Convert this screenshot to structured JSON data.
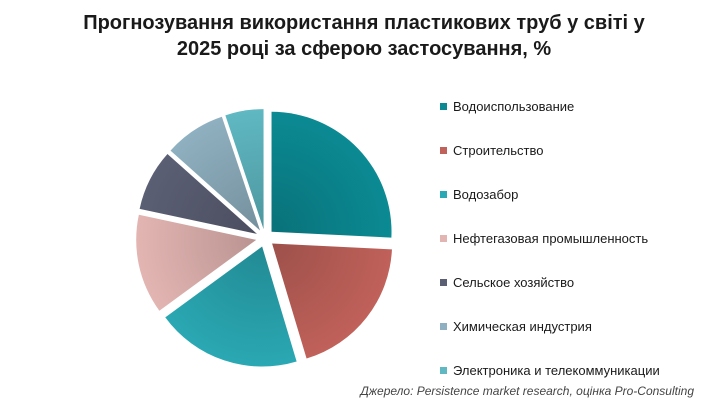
{
  "chart_data": {
    "type": "pie",
    "title_line1": "Прогнозування використання пластикових труб у світі у",
    "title_line2": "2025 році за сферою застосування, %",
    "source": "Джерело: Persistence market research, оцінка Pro-Consulting",
    "legend_position": "right",
    "exploded": true,
    "slices": [
      {
        "label": "Водоиспользование",
        "value": 25,
        "color": "#0b8a93"
      },
      {
        "label": "Строительство",
        "value": 19,
        "color": "#c0615a"
      },
      {
        "label": "Водозабор",
        "value": 19,
        "color": "#2aa8b3"
      },
      {
        "label": "Нефтегазовая промышленность",
        "value": 13,
        "color": "#e3b5b2"
      },
      {
        "label": "Сельское хозяйство",
        "value": 8,
        "color": "#5b5f74"
      },
      {
        "label": "Химическая индустрия",
        "value": 8,
        "color": "#8fb0c0"
      },
      {
        "label": "Электроника и телекоммуникации",
        "value": 5,
        "color": "#5fb8c2"
      }
    ]
  }
}
